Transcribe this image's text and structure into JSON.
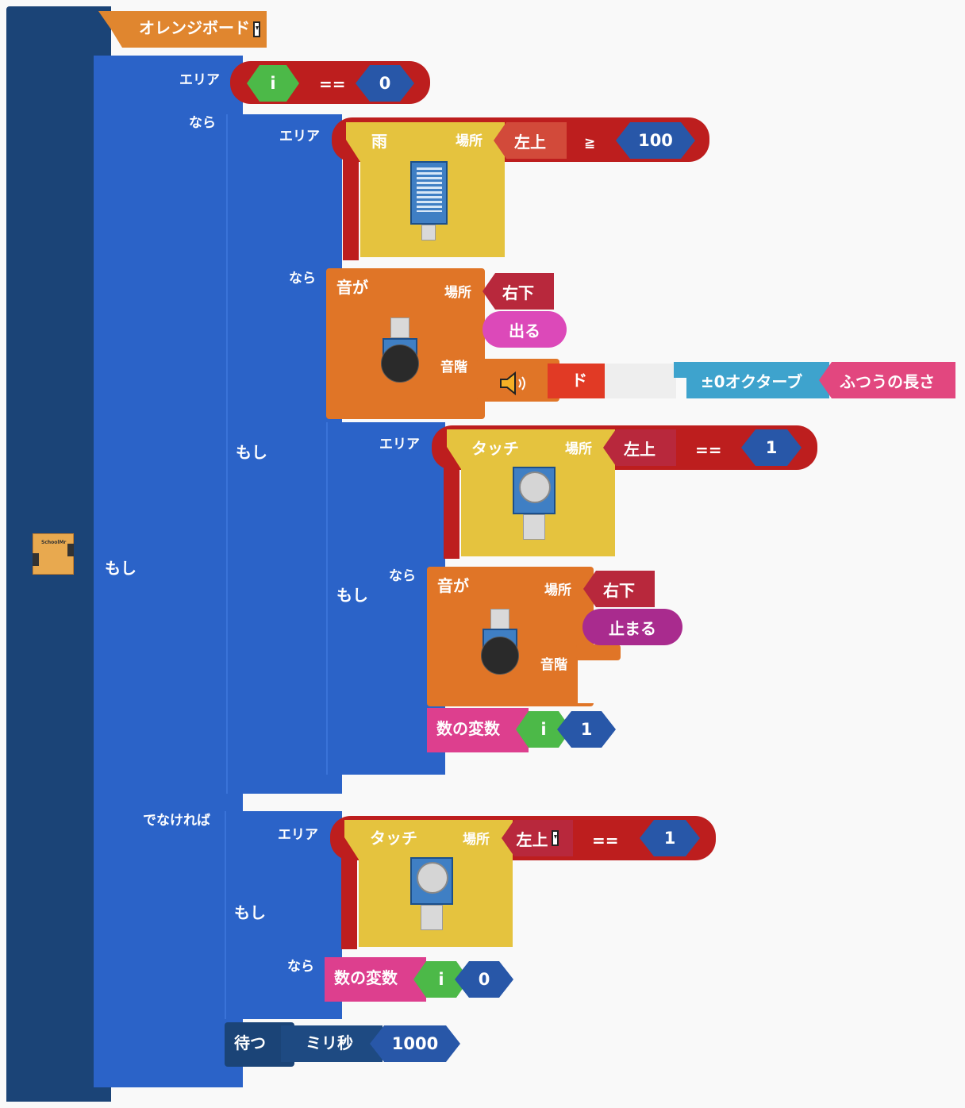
{
  "header": {
    "board_label": "オレンジボード"
  },
  "board_icon": {
    "label": "SchoolMr"
  },
  "outer_if": {
    "if_label": "もし",
    "area_label": "エリア",
    "cond": {
      "var": "i",
      "op": "==",
      "value": "0"
    },
    "then_label": "なら",
    "else_label": "でなければ"
  },
  "rain_if": {
    "if_label": "もし",
    "area_label": "エリア",
    "sensor": {
      "name": "雨",
      "place_label": "場所",
      "place": "左上"
    },
    "op": "≧",
    "value": "100",
    "then_label": "なら"
  },
  "sound_on": {
    "title": "音が",
    "place_label": "場所",
    "place": "右下",
    "action": "出る",
    "scale_label": "音階",
    "note": "ド",
    "octave": "±0オクターブ",
    "length": "ふつうの長さ"
  },
  "touch_if": {
    "if_label": "もし",
    "area_label": "エリア",
    "sensor": {
      "name": "タッチ",
      "place_label": "場所",
      "place": "左上"
    },
    "op": "==",
    "value": "1",
    "then_label": "なら"
  },
  "sound_off": {
    "title": "音が",
    "place_label": "場所",
    "place": "右下",
    "action": "止まる",
    "scale_label": "音階"
  },
  "set_var_1": {
    "label": "数の変数",
    "var": "i",
    "value": "1"
  },
  "else_if": {
    "if_label": "もし",
    "area_label": "エリア",
    "sensor": {
      "name": "タッチ",
      "place_label": "場所",
      "place": "左上"
    },
    "op": "==",
    "value": "1",
    "then_label": "なら"
  },
  "set_var_0": {
    "label": "数の変数",
    "var": "i",
    "value": "0"
  },
  "wait": {
    "label": "待つ",
    "unit": "ミリ秒",
    "value": "1000"
  },
  "colors": {
    "navy": "#1b4477",
    "blue": "#2b63c8",
    "red": "#bd1e1e",
    "yellow": "#e5c33e",
    "orange": "#e07527",
    "pink": "#dd3f8e",
    "green": "#4cb948",
    "number": "#2857a8"
  }
}
